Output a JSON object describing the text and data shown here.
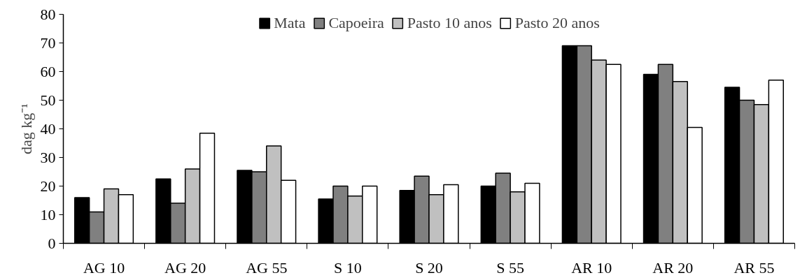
{
  "chart_data": {
    "type": "bar",
    "ylabel": "dag kg⁻¹",
    "categories": [
      "AG 10",
      "AG 20",
      "AG 55",
      "S 10",
      "S 20",
      "S 55",
      "AR 10",
      "AR 20",
      "AR 55"
    ],
    "series": [
      {
        "name": "Mata",
        "color": "#000000",
        "values": [
          16,
          22.5,
          25.5,
          15.5,
          18.5,
          20,
          69,
          59,
          54.5
        ]
      },
      {
        "name": "Capoeira",
        "color": "#808080",
        "values": [
          11,
          14,
          25,
          20,
          23.5,
          24.5,
          69,
          62.5,
          50
        ]
      },
      {
        "name": "Pasto 10 anos",
        "color": "#c0c0c0",
        "values": [
          19,
          26,
          34,
          16.5,
          17,
          18,
          64,
          56.5,
          48.5
        ]
      },
      {
        "name": "Pasto 20 anos",
        "color": "#ffffff",
        "values": [
          17,
          38.5,
          22,
          20,
          20.5,
          21,
          62.5,
          40.5,
          57
        ]
      }
    ],
    "ylim": [
      0,
      80
    ],
    "yticks": [
      0,
      10,
      20,
      30,
      40,
      50,
      60,
      70,
      80
    ],
    "grid": false,
    "legend": "top"
  }
}
